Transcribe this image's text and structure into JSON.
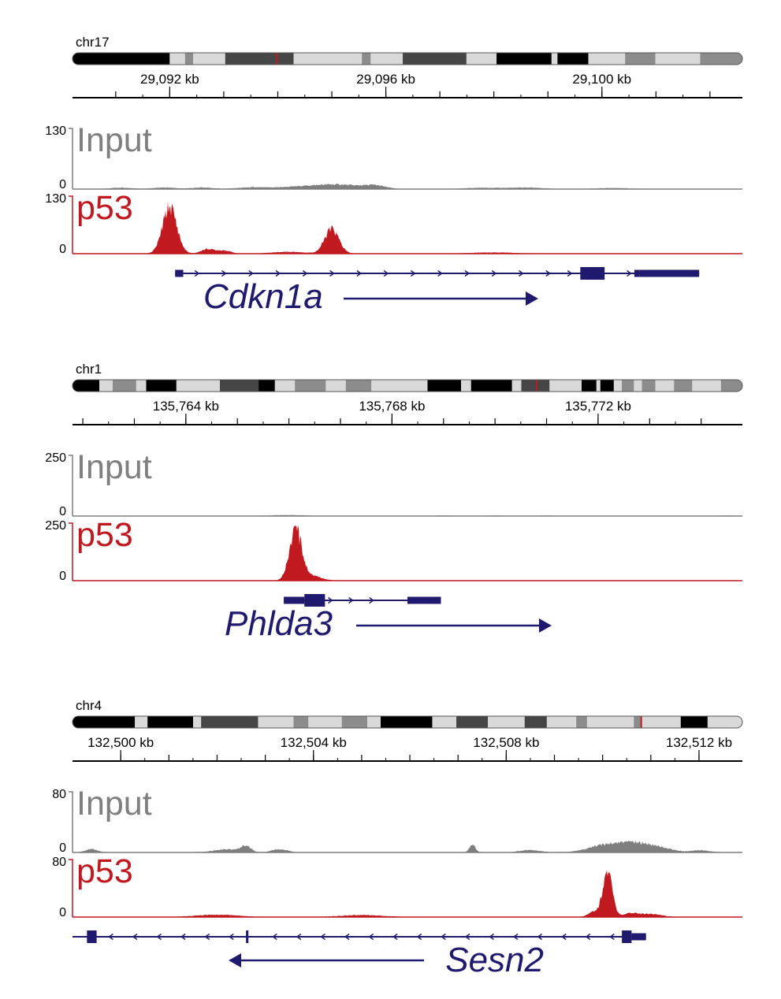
{
  "panels": [
    {
      "chromosome": "chr17",
      "cytobands": [
        {
          "start": 0.0,
          "end": 0.145,
          "color": "#000000"
        },
        {
          "start": 0.145,
          "end": 0.168,
          "color": "#d9d9d9"
        },
        {
          "start": 0.168,
          "end": 0.18,
          "color": "#8c8c8c"
        },
        {
          "start": 0.18,
          "end": 0.228,
          "color": "#d9d9d9"
        },
        {
          "start": 0.228,
          "end": 0.33,
          "color": "#454545"
        },
        {
          "start": 0.33,
          "end": 0.432,
          "color": "#d9d9d9"
        },
        {
          "start": 0.432,
          "end": 0.445,
          "color": "#8c8c8c"
        },
        {
          "start": 0.445,
          "end": 0.493,
          "color": "#d9d9d9"
        },
        {
          "start": 0.493,
          "end": 0.588,
          "color": "#454545"
        },
        {
          "start": 0.588,
          "end": 0.633,
          "color": "#d9d9d9"
        },
        {
          "start": 0.633,
          "end": 0.715,
          "color": "#000000"
        },
        {
          "start": 0.715,
          "end": 0.724,
          "color": "#d9d9d9"
        },
        {
          "start": 0.724,
          "end": 0.77,
          "color": "#000000"
        },
        {
          "start": 0.77,
          "end": 0.825,
          "color": "#d9d9d9"
        },
        {
          "start": 0.825,
          "end": 0.87,
          "color": "#8c8c8c"
        },
        {
          "start": 0.87,
          "end": 0.937,
          "color": "#d9d9d9"
        },
        {
          "start": 0.937,
          "end": 1.0,
          "color": "#8c8c8c"
        }
      ],
      "locus_marker": 0.305,
      "axis_kb": {
        "min": 29090.2,
        "max": 29102.6
      },
      "major_ticks_kb": [
        29091,
        29092,
        29093,
        29094,
        29095,
        29096,
        29097,
        29098,
        29099,
        29100,
        29101,
        29102
      ],
      "tick_labels": [
        {
          "kb": 29092,
          "text": "29,092 kb"
        },
        {
          "kb": 29096,
          "text": "29,096 kb"
        },
        {
          "kb": 29100,
          "text": "29,100 kb"
        }
      ],
      "input_track": {
        "name": "Input",
        "scale_max": "130",
        "scale_min": "0",
        "max": 130,
        "peaks": [
          {
            "kb": 29091.1,
            "h": 2.5,
            "w": 0.2
          },
          {
            "kb": 29091.9,
            "h": 3,
            "w": 0.2
          },
          {
            "kb": 29092.6,
            "h": 3,
            "w": 0.2
          },
          {
            "kb": 29093.5,
            "h": 3,
            "w": 0.25
          },
          {
            "kb": 29094.3,
            "h": 4,
            "w": 0.4
          },
          {
            "kb": 29094.9,
            "h": 6,
            "w": 0.35
          },
          {
            "kb": 29095.3,
            "h": 5,
            "w": 0.3
          },
          {
            "kb": 29095.8,
            "h": 7,
            "w": 0.2
          },
          {
            "kb": 29097.8,
            "h": 2.5,
            "w": 0.3
          },
          {
            "kb": 29098.6,
            "h": 3,
            "w": 0.3
          },
          {
            "kb": 29100.2,
            "h": 2,
            "w": 0.3
          }
        ]
      },
      "p53_track": {
        "name": "p53",
        "scale_max": "130",
        "scale_min": "0",
        "max": 130,
        "peaks": [
          {
            "kb": 29092.0,
            "h": 105,
            "w": 0.13
          },
          {
            "kb": 29092.7,
            "h": 10,
            "w": 0.12
          },
          {
            "kb": 29093.0,
            "h": 7,
            "w": 0.12
          },
          {
            "kb": 29095.0,
            "h": 55,
            "w": 0.13
          },
          {
            "kb": 29094.2,
            "h": 4,
            "w": 0.3
          },
          {
            "kb": 29098.0,
            "h": 2.5,
            "w": 0.4
          }
        ]
      },
      "gene": {
        "name": "Cdkn1a",
        "strand": "+",
        "start_kb": 29092.1,
        "end_kb": 29101.8,
        "intron_arrows_kb": [
          29092.5,
          29093.0,
          29093.5,
          29094.0,
          29094.5,
          29095.0,
          29095.5,
          29096.0,
          29096.5,
          29097.0,
          29097.5,
          29098.0,
          29098.5,
          29099.0,
          29099.4,
          29100.5
        ],
        "exons": [
          {
            "start_kb": 29092.1,
            "end_kb": 29092.25,
            "thick": false
          },
          {
            "start_kb": 29099.6,
            "end_kb": 29100.05,
            "thick": true
          },
          {
            "start_kb": 29100.6,
            "end_kb": 29100.7,
            "thick": false
          },
          {
            "start_kb": 29100.7,
            "end_kb": 29101.8,
            "thick": false
          }
        ]
      }
    },
    {
      "chromosome": "chr1",
      "cytobands": [
        {
          "start": 0.0,
          "end": 0.04,
          "color": "#000000"
        },
        {
          "start": 0.04,
          "end": 0.06,
          "color": "#d9d9d9"
        },
        {
          "start": 0.06,
          "end": 0.095,
          "color": "#8c8c8c"
        },
        {
          "start": 0.095,
          "end": 0.11,
          "color": "#d9d9d9"
        },
        {
          "start": 0.11,
          "end": 0.155,
          "color": "#000000"
        },
        {
          "start": 0.155,
          "end": 0.22,
          "color": "#d9d9d9"
        },
        {
          "start": 0.22,
          "end": 0.278,
          "color": "#454545"
        },
        {
          "start": 0.278,
          "end": 0.302,
          "color": "#000000"
        },
        {
          "start": 0.302,
          "end": 0.332,
          "color": "#d9d9d9"
        },
        {
          "start": 0.332,
          "end": 0.378,
          "color": "#8c8c8c"
        },
        {
          "start": 0.378,
          "end": 0.408,
          "color": "#d9d9d9"
        },
        {
          "start": 0.408,
          "end": 0.446,
          "color": "#8c8c8c"
        },
        {
          "start": 0.446,
          "end": 0.53,
          "color": "#d9d9d9"
        },
        {
          "start": 0.53,
          "end": 0.58,
          "color": "#000000"
        },
        {
          "start": 0.58,
          "end": 0.595,
          "color": "#d9d9d9"
        },
        {
          "start": 0.595,
          "end": 0.656,
          "color": "#000000"
        },
        {
          "start": 0.656,
          "end": 0.67,
          "color": "#d9d9d9"
        },
        {
          "start": 0.67,
          "end": 0.712,
          "color": "#454545"
        },
        {
          "start": 0.712,
          "end": 0.76,
          "color": "#d9d9d9"
        },
        {
          "start": 0.76,
          "end": 0.782,
          "color": "#000000"
        },
        {
          "start": 0.782,
          "end": 0.788,
          "color": "#d9d9d9"
        },
        {
          "start": 0.788,
          "end": 0.808,
          "color": "#000000"
        },
        {
          "start": 0.808,
          "end": 0.82,
          "color": "#d9d9d9"
        },
        {
          "start": 0.82,
          "end": 0.838,
          "color": "#8c8c8c"
        },
        {
          "start": 0.838,
          "end": 0.85,
          "color": "#d9d9d9"
        },
        {
          "start": 0.85,
          "end": 0.87,
          "color": "#8c8c8c"
        },
        {
          "start": 0.87,
          "end": 0.898,
          "color": "#d9d9d9"
        },
        {
          "start": 0.898,
          "end": 0.925,
          "color": "#8c8c8c"
        },
        {
          "start": 0.925,
          "end": 0.968,
          "color": "#d9d9d9"
        },
        {
          "start": 0.968,
          "end": 1.0,
          "color": "#8c8c8c"
        }
      ],
      "locus_marker": 0.693,
      "axis_kb": {
        "min": 135761.8,
        "max": 135774.8
      },
      "major_ticks_kb": [
        135762,
        135763,
        135764,
        135765,
        135766,
        135767,
        135768,
        135769,
        135770,
        135771,
        135772,
        135773,
        135774
      ],
      "tick_labels": [
        {
          "kb": 135764,
          "text": "135,764 kb"
        },
        {
          "kb": 135768,
          "text": "135,768 kb"
        },
        {
          "kb": 135772,
          "text": "135,772 kb"
        }
      ],
      "input_track": {
        "name": "Input",
        "scale_max": "250",
        "scale_min": "0",
        "max": 250,
        "peaks": [
          {
            "kb": 135765.8,
            "h": 3,
            "w": 0.25
          },
          {
            "kb": 135766.2,
            "h": 2.5,
            "w": 0.2
          },
          {
            "kb": 135769.0,
            "h": 2,
            "w": 0.2
          },
          {
            "kb": 135770.0,
            "h": 2,
            "w": 0.2
          },
          {
            "kb": 135771.0,
            "h": 2,
            "w": 0.2
          },
          {
            "kb": 135774.5,
            "h": 2,
            "w": 0.2
          }
        ]
      },
      "p53_track": {
        "name": "p53",
        "scale_max": "250",
        "scale_min": "0",
        "max": 250,
        "peaks": [
          {
            "kb": 135766.13,
            "h": 215,
            "w": 0.12
          },
          {
            "kb": 135766.45,
            "h": 20,
            "w": 0.18
          }
        ]
      },
      "gene": {
        "name": "Phlda3",
        "strand": "+",
        "start_kb": 135765.9,
        "end_kb": 135768.95,
        "intron_arrows_kb": [
          135766.8,
          135767.2,
          135767.6
        ],
        "exons": [
          {
            "start_kb": 135765.9,
            "end_kb": 135766.3,
            "thick": false
          },
          {
            "start_kb": 135766.3,
            "end_kb": 135766.7,
            "thick": true
          },
          {
            "start_kb": 135768.3,
            "end_kb": 135768.95,
            "thick": false
          }
        ]
      }
    },
    {
      "chromosome": "chr4",
      "cytobands": [
        {
          "start": 0.0,
          "end": 0.093,
          "color": "#000000"
        },
        {
          "start": 0.093,
          "end": 0.112,
          "color": "#d9d9d9"
        },
        {
          "start": 0.112,
          "end": 0.18,
          "color": "#000000"
        },
        {
          "start": 0.18,
          "end": 0.192,
          "color": "#d9d9d9"
        },
        {
          "start": 0.192,
          "end": 0.277,
          "color": "#454545"
        },
        {
          "start": 0.277,
          "end": 0.33,
          "color": "#d9d9d9"
        },
        {
          "start": 0.33,
          "end": 0.352,
          "color": "#8c8c8c"
        },
        {
          "start": 0.352,
          "end": 0.402,
          "color": "#d9d9d9"
        },
        {
          "start": 0.402,
          "end": 0.44,
          "color": "#8c8c8c"
        },
        {
          "start": 0.44,
          "end": 0.46,
          "color": "#d9d9d9"
        },
        {
          "start": 0.46,
          "end": 0.537,
          "color": "#000000"
        },
        {
          "start": 0.537,
          "end": 0.573,
          "color": "#d9d9d9"
        },
        {
          "start": 0.573,
          "end": 0.62,
          "color": "#454545"
        },
        {
          "start": 0.62,
          "end": 0.675,
          "color": "#d9d9d9"
        },
        {
          "start": 0.675,
          "end": 0.708,
          "color": "#454545"
        },
        {
          "start": 0.708,
          "end": 0.752,
          "color": "#d9d9d9"
        },
        {
          "start": 0.752,
          "end": 0.768,
          "color": "#8c8c8c"
        },
        {
          "start": 0.768,
          "end": 0.838,
          "color": "#d9d9d9"
        },
        {
          "start": 0.838,
          "end": 0.85,
          "color": "#8c8c8c"
        },
        {
          "start": 0.85,
          "end": 0.908,
          "color": "#d9d9d9"
        },
        {
          "start": 0.908,
          "end": 0.948,
          "color": "#000000"
        },
        {
          "start": 0.948,
          "end": 1.0,
          "color": "#d9d9d9"
        }
      ],
      "locus_marker": 0.849,
      "axis_kb": {
        "min": 132499.0,
        "max": 132512.9
      },
      "major_ticks_kb": [
        132500,
        132501,
        132502,
        132503,
        132504,
        132505,
        132506,
        132507,
        132508,
        132509,
        132510,
        132511,
        132512
      ],
      "tick_labels": [
        {
          "kb": 132500,
          "text": "132,500 kb"
        },
        {
          "kb": 132504,
          "text": "132,504 kb"
        },
        {
          "kb": 132508,
          "text": "132,508 kb"
        },
        {
          "kb": 132512,
          "text": "132,512 kb"
        }
      ],
      "input_track": {
        "name": "Input",
        "scale_max": "80",
        "scale_min": "0",
        "max": 80,
        "peaks": [
          {
            "kb": 132499.4,
            "h": 4,
            "w": 0.12
          },
          {
            "kb": 132502.2,
            "h": 4,
            "w": 0.25
          },
          {
            "kb": 132502.6,
            "h": 8,
            "w": 0.1
          },
          {
            "kb": 132503.3,
            "h": 4,
            "w": 0.15
          },
          {
            "kb": 132507.3,
            "h": 10,
            "w": 0.06
          },
          {
            "kb": 132508.5,
            "h": 3,
            "w": 0.2
          },
          {
            "kb": 132510.1,
            "h": 10,
            "w": 0.35
          },
          {
            "kb": 132510.7,
            "h": 10,
            "w": 0.3
          },
          {
            "kb": 132511.2,
            "h": 5,
            "w": 0.25
          },
          {
            "kb": 132512.0,
            "h": 2.5,
            "w": 0.2
          }
        ]
      },
      "p53_track": {
        "name": "p53",
        "scale_max": "80",
        "scale_min": "0",
        "max": 80,
        "peaks": [
          {
            "kb": 132510.1,
            "h": 62,
            "w": 0.1
          },
          {
            "kb": 132509.8,
            "h": 7,
            "w": 0.1
          },
          {
            "kb": 132510.6,
            "h": 5,
            "w": 0.15
          },
          {
            "kb": 132511.0,
            "h": 4,
            "w": 0.2
          },
          {
            "kb": 132502.0,
            "h": 3,
            "w": 0.4
          },
          {
            "kb": 132505.0,
            "h": 2.5,
            "w": 0.4
          }
        ]
      },
      "gene": {
        "name": "Sesn2",
        "strand": "-",
        "start_kb": 132499.0,
        "end_kb": 132510.9,
        "intron_arrows_kb": [
          132499.8,
          132500.3,
          132500.8,
          132501.3,
          132501.8,
          132502.3,
          132503.2,
          132503.7,
          132504.2,
          132504.7,
          132505.2,
          132505.7,
          132506.2,
          132506.7,
          132507.2,
          132507.7,
          132508.2,
          132508.7,
          132509.2,
          132509.7,
          132510.2
        ],
        "exons": [
          {
            "start_kb": 132499.3,
            "end_kb": 132499.5,
            "thick": true
          },
          {
            "start_kb": 132502.6,
            "end_kb": 132502.65,
            "thick": true
          },
          {
            "start_kb": 132510.4,
            "end_kb": 132510.6,
            "thick": true
          },
          {
            "start_kb": 132510.6,
            "end_kb": 132510.9,
            "thick": false
          }
        ]
      }
    }
  ],
  "colors": {
    "input": "#7f7f7f",
    "p53": "#c0191f",
    "gene": "#1f1a6e",
    "locus_marker": "#c0191f",
    "axis": "#000000"
  }
}
